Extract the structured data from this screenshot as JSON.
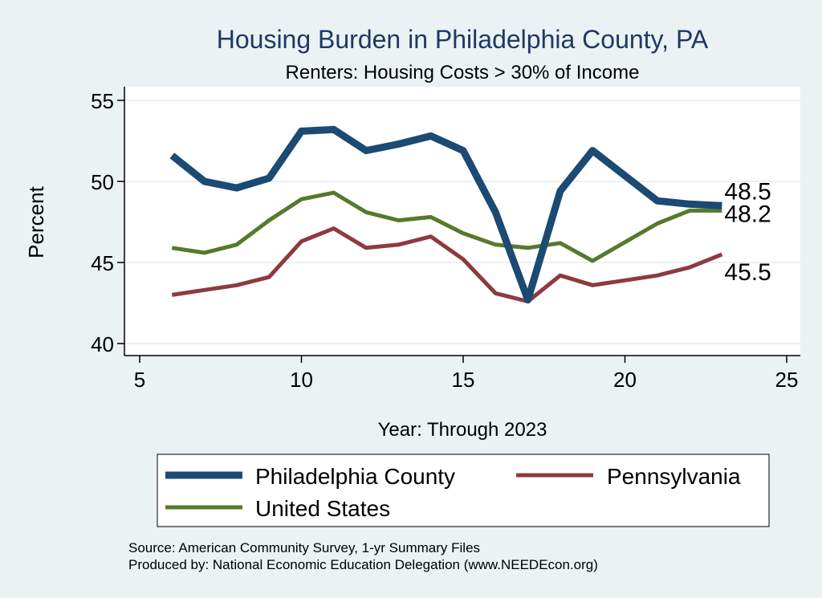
{
  "chart_data": {
    "type": "line",
    "title": "Housing Burden in Philadelphia County, PA",
    "subtitle": "Renters: Housing Costs > 30% of Income",
    "xlabel": "Year: Through 2023",
    "ylabel": "Percent",
    "xlim": [
      5,
      25
    ],
    "ylim": [
      40,
      55
    ],
    "xticks": [
      5,
      10,
      15,
      20,
      25
    ],
    "yticks": [
      40,
      45,
      50,
      55
    ],
    "grid": true,
    "legend_position": "bottom",
    "x": [
      6,
      7,
      8,
      9,
      10,
      11,
      12,
      13,
      14,
      15,
      16,
      17,
      18,
      19,
      21,
      22,
      23
    ],
    "series": [
      {
        "name": "Philadelphia County",
        "color": "#1b4a73",
        "values": [
          51.6,
          50.0,
          49.6,
          50.2,
          53.1,
          53.2,
          51.9,
          52.3,
          52.8,
          51.9,
          48.1,
          42.7,
          49.4,
          51.9,
          48.8,
          48.6,
          48.5
        ],
        "end_label": "48.5"
      },
      {
        "name": "Pennsylvania",
        "color": "#8e3a3e",
        "values": [
          43.0,
          43.3,
          43.6,
          44.1,
          46.3,
          47.1,
          45.9,
          46.1,
          46.6,
          45.2,
          43.1,
          42.6,
          44.2,
          43.6,
          44.2,
          44.7,
          45.5
        ],
        "end_label": "45.5"
      },
      {
        "name": "United States",
        "color": "#557a2c",
        "values": [
          45.9,
          45.6,
          46.1,
          47.6,
          48.9,
          49.3,
          48.1,
          47.6,
          47.8,
          46.8,
          46.1,
          45.9,
          46.2,
          45.1,
          47.4,
          48.2,
          48.2
        ],
        "end_label": "48.2"
      }
    ],
    "legend_order": [
      "Philadelphia County",
      "Pennsylvania",
      "United States"
    ]
  },
  "footer": {
    "source": "Source: American Community Survey, 1-yr Summary Files",
    "produced_by": "Produced by: National Economic Education Delegation (www.NEEDEcon.org)"
  },
  "colors": {
    "outer_background": "#eaf2f3",
    "plot_background": "#ffffff",
    "title": "#1f3864",
    "gridline": "#eaf2f3",
    "axis": "#000000"
  }
}
